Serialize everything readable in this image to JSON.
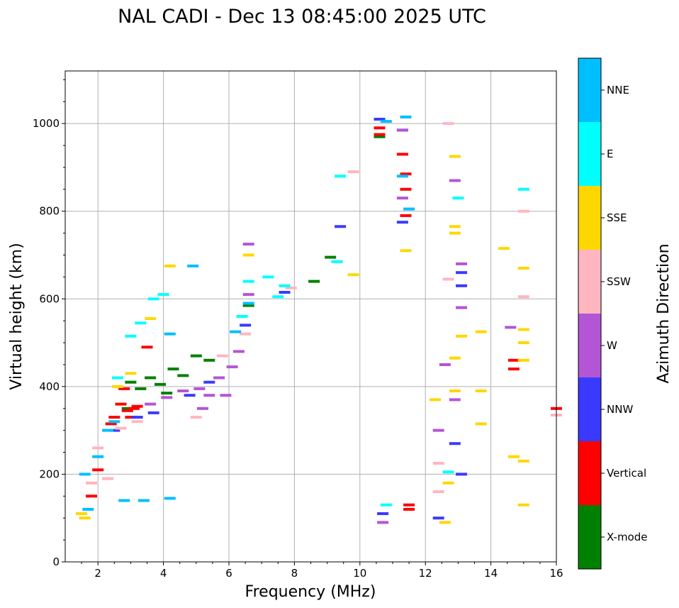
{
  "chart_data": {
    "type": "scatter",
    "title": "NAL CADI - Dec 13 08:45:00 2025 UTC",
    "xlabel": "Frequency (MHz)",
    "ylabel": "Virtual height (km)",
    "xlim": [
      1,
      16
    ],
    "ylim": [
      0,
      1120
    ],
    "xticks": [
      2,
      4,
      6,
      8,
      10,
      12,
      14,
      16
    ],
    "yticks": [
      0,
      200,
      400,
      600,
      800,
      1000
    ],
    "grid": true,
    "colorbar": {
      "label": "Azimuth Direction",
      "categories": [
        {
          "name": "X-mode",
          "color": "#008000"
        },
        {
          "name": "Vertical",
          "color": "#ff0000"
        },
        {
          "name": "NNW",
          "color": "#3a3aff"
        },
        {
          "name": "W",
          "color": "#b455d6"
        },
        {
          "name": "SSW",
          "color": "#ffb6c1"
        },
        {
          "name": "SSE",
          "color": "#ffd700"
        },
        {
          "name": "E",
          "color": "#00ffff"
        },
        {
          "name": "NNE",
          "color": "#00bfff"
        }
      ]
    },
    "series": [
      {
        "name": "X-mode",
        "points": [
          [
            3.0,
            410
          ],
          [
            3.3,
            395
          ],
          [
            3.6,
            420
          ],
          [
            3.9,
            405
          ],
          [
            4.1,
            385
          ],
          [
            4.3,
            440
          ],
          [
            4.6,
            425
          ],
          [
            5.0,
            470
          ],
          [
            5.4,
            460
          ],
          [
            6.6,
            585
          ],
          [
            8.6,
            640
          ],
          [
            9.1,
            695
          ],
          [
            10.6,
            970
          ],
          [
            2.9,
            350
          ]
        ]
      },
      {
        "name": "Vertical",
        "points": [
          [
            1.8,
            150
          ],
          [
            2.0,
            210
          ],
          [
            2.5,
            330
          ],
          [
            2.8,
            395
          ],
          [
            2.9,
            345
          ],
          [
            3.0,
            330
          ],
          [
            3.2,
            355
          ],
          [
            3.5,
            490
          ],
          [
            3.1,
            350
          ],
          [
            2.7,
            360
          ],
          [
            10.6,
            975
          ],
          [
            10.6,
            990
          ],
          [
            11.3,
            930
          ],
          [
            11.4,
            885
          ],
          [
            11.4,
            850
          ],
          [
            11.4,
            790
          ],
          [
            11.5,
            120
          ],
          [
            11.5,
            130
          ],
          [
            14.7,
            460
          ],
          [
            14.7,
            440
          ],
          [
            16,
            350
          ],
          [
            2.4,
            315
          ]
        ]
      },
      {
        "name": "NNW",
        "points": [
          [
            2.5,
            300
          ],
          [
            3.2,
            330
          ],
          [
            3.7,
            340
          ],
          [
            4.8,
            380
          ],
          [
            5.4,
            410
          ],
          [
            6.5,
            540
          ],
          [
            7.7,
            615
          ],
          [
            9.4,
            765
          ],
          [
            10.6,
            1010
          ],
          [
            11.3,
            985
          ],
          [
            11.3,
            775
          ],
          [
            12.4,
            100
          ],
          [
            12.9,
            270
          ],
          [
            13.1,
            200
          ],
          [
            13.1,
            660
          ],
          [
            13.1,
            630
          ],
          [
            10.7,
            110
          ]
        ]
      },
      {
        "name": "W",
        "points": [
          [
            3.6,
            360
          ],
          [
            4.1,
            375
          ],
          [
            4.6,
            390
          ],
          [
            5.1,
            395
          ],
          [
            5.4,
            380
          ],
          [
            5.7,
            420
          ],
          [
            5.9,
            380
          ],
          [
            6.1,
            445
          ],
          [
            6.3,
            480
          ],
          [
            5.2,
            350
          ],
          [
            6.6,
            610
          ],
          [
            6.6,
            725
          ],
          [
            10.7,
            90
          ],
          [
            11.3,
            985
          ],
          [
            11.3,
            830
          ],
          [
            12.4,
            300
          ],
          [
            12.9,
            870
          ],
          [
            12.9,
            370
          ],
          [
            13.1,
            580
          ],
          [
            13.1,
            680
          ],
          [
            14.6,
            535
          ],
          [
            12.6,
            450
          ]
        ]
      },
      {
        "name": "SSW",
        "points": [
          [
            1.8,
            180
          ],
          [
            2.0,
            260
          ],
          [
            2.3,
            190
          ],
          [
            2.7,
            305
          ],
          [
            3.2,
            320
          ],
          [
            5.0,
            330
          ],
          [
            5.8,
            470
          ],
          [
            6.5,
            520
          ],
          [
            7.9,
            625
          ],
          [
            9.8,
            890
          ],
          [
            12.7,
            1000
          ],
          [
            12.7,
            645
          ],
          [
            15.0,
            800
          ],
          [
            15.0,
            605
          ],
          [
            16,
            335
          ],
          [
            12.4,
            160
          ],
          [
            12.4,
            225
          ]
        ]
      },
      {
        "name": "SSE",
        "points": [
          [
            1.5,
            110
          ],
          [
            1.6,
            100
          ],
          [
            2.6,
            400
          ],
          [
            3.0,
            430
          ],
          [
            3.6,
            555
          ],
          [
            4.2,
            675
          ],
          [
            6.6,
            700
          ],
          [
            9.8,
            655
          ],
          [
            11.4,
            710
          ],
          [
            12.6,
            90
          ],
          [
            12.9,
            925
          ],
          [
            12.9,
            765
          ],
          [
            12.9,
            750
          ],
          [
            12.9,
            465
          ],
          [
            12.9,
            390
          ],
          [
            13.1,
            515
          ],
          [
            13.7,
            525
          ],
          [
            13.7,
            390
          ],
          [
            13.7,
            315
          ],
          [
            14.4,
            715
          ],
          [
            14.7,
            240
          ],
          [
            15.0,
            670
          ],
          [
            15.0,
            530
          ],
          [
            15.0,
            500
          ],
          [
            15.0,
            460
          ],
          [
            15.0,
            230
          ],
          [
            15.0,
            130
          ],
          [
            12.7,
            180
          ],
          [
            12.3,
            370
          ]
        ]
      },
      {
        "name": "E",
        "points": [
          [
            3.0,
            515
          ],
          [
            3.3,
            545
          ],
          [
            3.7,
            600
          ],
          [
            4.0,
            610
          ],
          [
            6.4,
            560
          ],
          [
            6.6,
            640
          ],
          [
            7.2,
            650
          ],
          [
            7.5,
            605
          ],
          [
            7.7,
            630
          ],
          [
            9.3,
            685
          ],
          [
            9.4,
            880
          ],
          [
            13.0,
            830
          ],
          [
            15.0,
            850
          ],
          [
            10.8,
            130
          ],
          [
            12.7,
            205
          ],
          [
            2.6,
            420
          ]
        ]
      },
      {
        "name": "NNE",
        "points": [
          [
            1.6,
            200
          ],
          [
            2.0,
            240
          ],
          [
            2.3,
            300
          ],
          [
            2.5,
            320
          ],
          [
            2.8,
            140
          ],
          [
            3.4,
            140
          ],
          [
            4.2,
            145
          ],
          [
            4.2,
            520
          ],
          [
            4.9,
            675
          ],
          [
            6.2,
            525
          ],
          [
            6.6,
            590
          ],
          [
            10.8,
            1005
          ],
          [
            11.4,
            1015
          ],
          [
            11.3,
            880
          ],
          [
            11.5,
            805
          ],
          [
            1.7,
            120
          ]
        ]
      }
    ]
  }
}
